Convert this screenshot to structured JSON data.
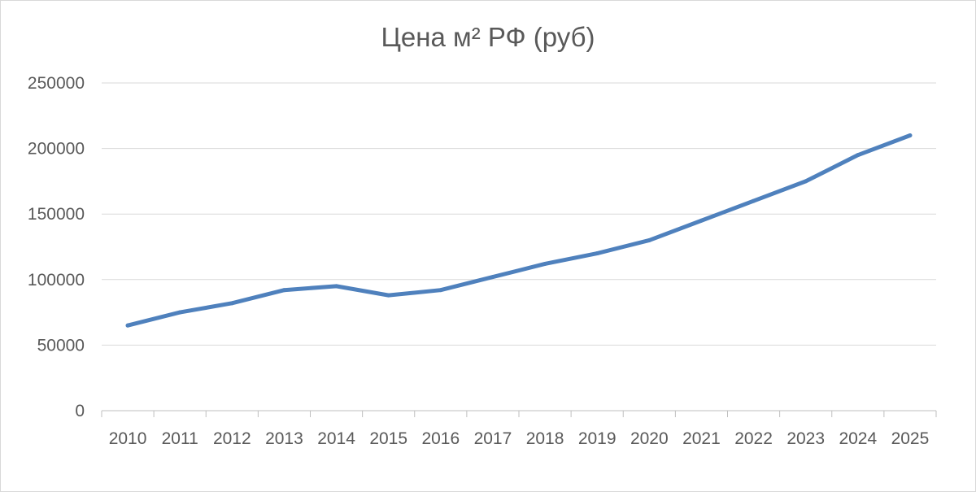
{
  "chart_data": {
    "type": "line",
    "title": "Цена м² РФ (руб)",
    "xlabel": "",
    "ylabel": "",
    "categories": [
      "2010",
      "2011",
      "2012",
      "2013",
      "2014",
      "2015",
      "2016",
      "2017",
      "2018",
      "2019",
      "2020",
      "2021",
      "2022",
      "2023",
      "2024",
      "2025"
    ],
    "series": [
      {
        "values": [
          65000,
          75000,
          82000,
          92000,
          95000,
          88000,
          92000,
          102000,
          112000,
          120000,
          130000,
          145000,
          160000,
          175000,
          195000,
          210000
        ],
        "color": "#4f81bd"
      }
    ],
    "ylim": [
      0,
      250000
    ],
    "yticks": [
      "0",
      "50000",
      "100000",
      "150000",
      "200000",
      "250000"
    ],
    "grid": true,
    "legend": "none"
  }
}
